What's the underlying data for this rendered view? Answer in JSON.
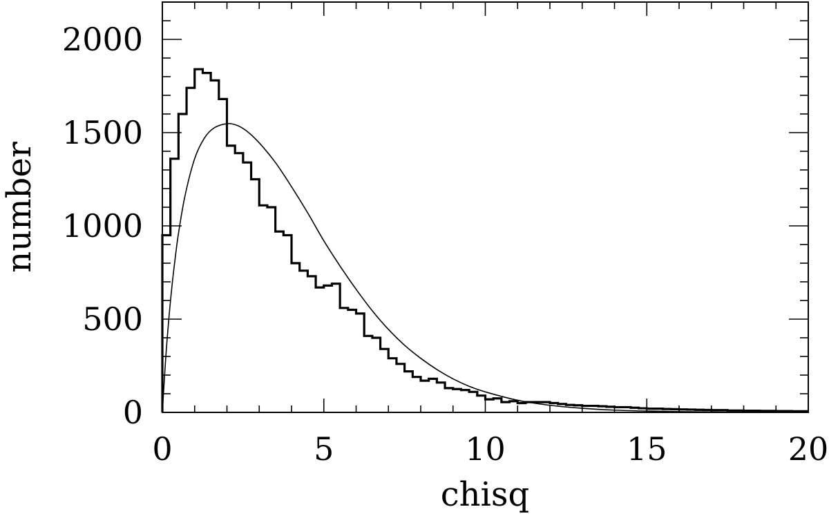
{
  "chart_data": {
    "type": "line",
    "title": "",
    "xlabel": "chisq",
    "ylabel": "number",
    "xlim": [
      0,
      20
    ],
    "ylim": [
      0,
      2200
    ],
    "x_ticks": [
      0,
      5,
      10,
      15,
      20
    ],
    "y_ticks": [
      0,
      500,
      1000,
      1500,
      2000
    ],
    "x_tick_labels": [
      "0",
      "5",
      "10",
      "15",
      "20"
    ],
    "y_tick_labels": [
      "0",
      "500",
      "1000",
      "1500",
      "2000"
    ],
    "grid": false,
    "legend": "none",
    "series": [
      {
        "style": "histogram",
        "bin_width": 0.25,
        "bin_start": 0,
        "values": [
          950,
          1360,
          1600,
          1740,
          1840,
          1820,
          1780,
          1680,
          1430,
          1390,
          1340,
          1250,
          1110,
          1100,
          970,
          950,
          800,
          760,
          730,
          670,
          680,
          690,
          560,
          550,
          530,
          410,
          400,
          340,
          290,
          260,
          220,
          190,
          170,
          180,
          160,
          130,
          125,
          120,
          110,
          90,
          70,
          75,
          55,
          60,
          50,
          55,
          55,
          55,
          50,
          45,
          40,
          38,
          35,
          35,
          33,
          30,
          28,
          28,
          25,
          22,
          20,
          20,
          18,
          17,
          16,
          15,
          14,
          13,
          12,
          12,
          10,
          10,
          9,
          9,
          8,
          8,
          7,
          7,
          6,
          6
        ]
      },
      {
        "style": "smooth-curve",
        "x": [
          0,
          0.1,
          0.2,
          0.3,
          0.4,
          0.5,
          0.7,
          1.0,
          1.3,
          1.6,
          2.0,
          2.3,
          2.6,
          3.0,
          3.5,
          4.0,
          4.5,
          5.0,
          5.5,
          6.0,
          6.5,
          7.0,
          7.5,
          8.0,
          8.5,
          9.0,
          9.5,
          10.0,
          11.0,
          12.0,
          13.0,
          14.0,
          15.0,
          16.0,
          17.0,
          18.0,
          19.0,
          20.0
        ],
        "values": [
          0,
          280,
          500,
          680,
          830,
          960,
          1160,
          1360,
          1470,
          1525,
          1548,
          1540,
          1510,
          1445,
          1340,
          1210,
          1070,
          920,
          785,
          660,
          545,
          445,
          360,
          290,
          230,
          180,
          140,
          110,
          65,
          38,
          22,
          12,
          7,
          4,
          2,
          1,
          0.5,
          0
        ]
      }
    ]
  }
}
